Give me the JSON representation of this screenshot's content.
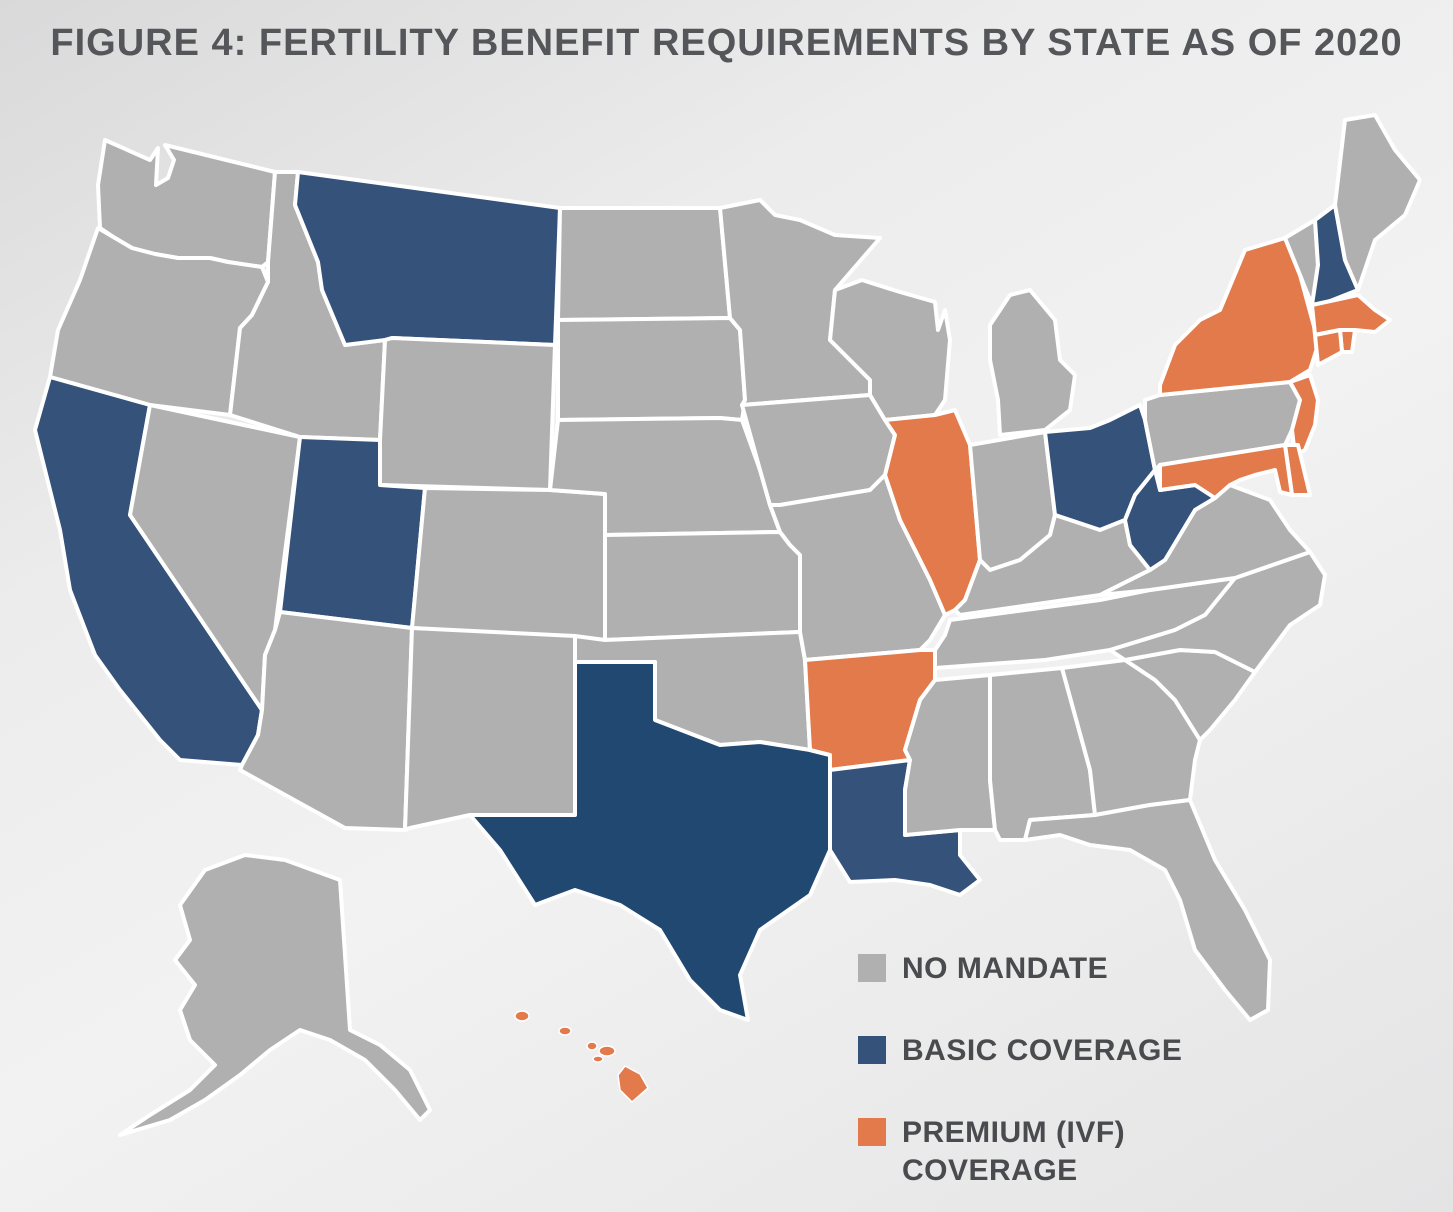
{
  "title": "FIGURE 4: FERTILITY BENEFIT REQUIREMENTS BY STATE AS OF 2020",
  "colors": {
    "no_mandate": "#b0b0b1",
    "basic": "#34527a",
    "basic_dark": "#214871",
    "premium": "#e37a4c",
    "border": "#ffffff"
  },
  "legend": [
    {
      "category": "no_mandate",
      "label": "NO MANDATE"
    },
    {
      "category": "basic",
      "label": "BASIC COVERAGE"
    },
    {
      "category": "premium",
      "label": "PREMIUM (IVF) COVERAGE"
    }
  ],
  "states": [
    {
      "id": "WA",
      "category": "no_mandate"
    },
    {
      "id": "OR",
      "category": "no_mandate"
    },
    {
      "id": "CA",
      "category": "basic"
    },
    {
      "id": "NV",
      "category": "no_mandate"
    },
    {
      "id": "ID",
      "category": "no_mandate"
    },
    {
      "id": "MT",
      "category": "basic"
    },
    {
      "id": "WY",
      "category": "no_mandate"
    },
    {
      "id": "UT",
      "category": "basic"
    },
    {
      "id": "AZ",
      "category": "no_mandate"
    },
    {
      "id": "CO",
      "category": "no_mandate"
    },
    {
      "id": "NM",
      "category": "no_mandate"
    },
    {
      "id": "ND",
      "category": "no_mandate"
    },
    {
      "id": "SD",
      "category": "no_mandate"
    },
    {
      "id": "NE",
      "category": "no_mandate"
    },
    {
      "id": "KS",
      "category": "no_mandate"
    },
    {
      "id": "OK",
      "category": "no_mandate"
    },
    {
      "id": "TX",
      "category": "basic"
    },
    {
      "id": "MN",
      "category": "no_mandate"
    },
    {
      "id": "IA",
      "category": "no_mandate"
    },
    {
      "id": "MO",
      "category": "no_mandate"
    },
    {
      "id": "AR",
      "category": "premium"
    },
    {
      "id": "LA",
      "category": "basic"
    },
    {
      "id": "WI",
      "category": "no_mandate"
    },
    {
      "id": "IL",
      "category": "premium"
    },
    {
      "id": "MI",
      "category": "no_mandate"
    },
    {
      "id": "IN",
      "category": "no_mandate"
    },
    {
      "id": "OH",
      "category": "basic"
    },
    {
      "id": "KY",
      "category": "no_mandate"
    },
    {
      "id": "TN",
      "category": "no_mandate"
    },
    {
      "id": "MS",
      "category": "no_mandate"
    },
    {
      "id": "AL",
      "category": "no_mandate"
    },
    {
      "id": "GA",
      "category": "no_mandate"
    },
    {
      "id": "FL",
      "category": "no_mandate"
    },
    {
      "id": "SC",
      "category": "no_mandate"
    },
    {
      "id": "NC",
      "category": "no_mandate"
    },
    {
      "id": "VA",
      "category": "no_mandate"
    },
    {
      "id": "WV",
      "category": "basic"
    },
    {
      "id": "PA",
      "category": "no_mandate"
    },
    {
      "id": "NY",
      "category": "premium"
    },
    {
      "id": "VT",
      "category": "no_mandate"
    },
    {
      "id": "NH",
      "category": "basic"
    },
    {
      "id": "ME",
      "category": "no_mandate"
    },
    {
      "id": "MA",
      "category": "premium"
    },
    {
      "id": "RI",
      "category": "premium"
    },
    {
      "id": "CT",
      "category": "premium"
    },
    {
      "id": "NJ",
      "category": "premium"
    },
    {
      "id": "DE",
      "category": "premium"
    },
    {
      "id": "MD",
      "category": "premium"
    },
    {
      "id": "AK",
      "category": "no_mandate"
    },
    {
      "id": "HI",
      "category": "premium"
    }
  ]
}
